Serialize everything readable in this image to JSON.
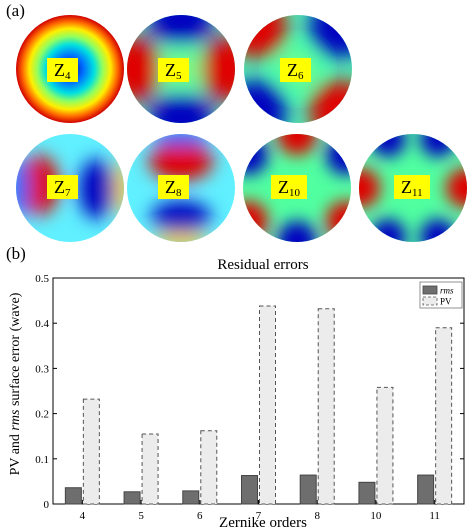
{
  "panels": {
    "a": "(a)",
    "b": "(b)"
  },
  "modes": [
    {
      "letter": "Z",
      "sub": "4"
    },
    {
      "letter": "Z",
      "sub": "5"
    },
    {
      "letter": "Z",
      "sub": "6"
    },
    {
      "letter": "Z",
      "sub": "7"
    },
    {
      "letter": "Z",
      "sub": "8"
    },
    {
      "letter": "Z",
      "sub": "10"
    },
    {
      "letter": "Z",
      "sub": "11"
    }
  ],
  "chart_data": {
    "type": "bar",
    "title": "Residual errors",
    "xlabel": "Zernike orders",
    "ylabel_parts": [
      "PV and ",
      "rms",
      " surface error (wave)"
    ],
    "categories": [
      "4",
      "5",
      "6",
      "7",
      "8",
      "10",
      "11"
    ],
    "series": [
      {
        "name": "rms",
        "values": [
          0.036,
          0.027,
          0.029,
          0.063,
          0.064,
          0.048,
          0.064
        ],
        "color": "#6e6e6e",
        "style": "solid"
      },
      {
        "name": "PV",
        "values": [
          0.232,
          0.155,
          0.162,
          0.438,
          0.432,
          0.258,
          0.39
        ],
        "color": "#ececec",
        "style": "dashed"
      }
    ],
    "ylim": [
      0,
      0.5
    ],
    "yticks": [
      "0",
      "0.1",
      "0.2",
      "0.3",
      "0.4",
      "0.5"
    ],
    "legend": "top-right",
    "grid": false
  }
}
